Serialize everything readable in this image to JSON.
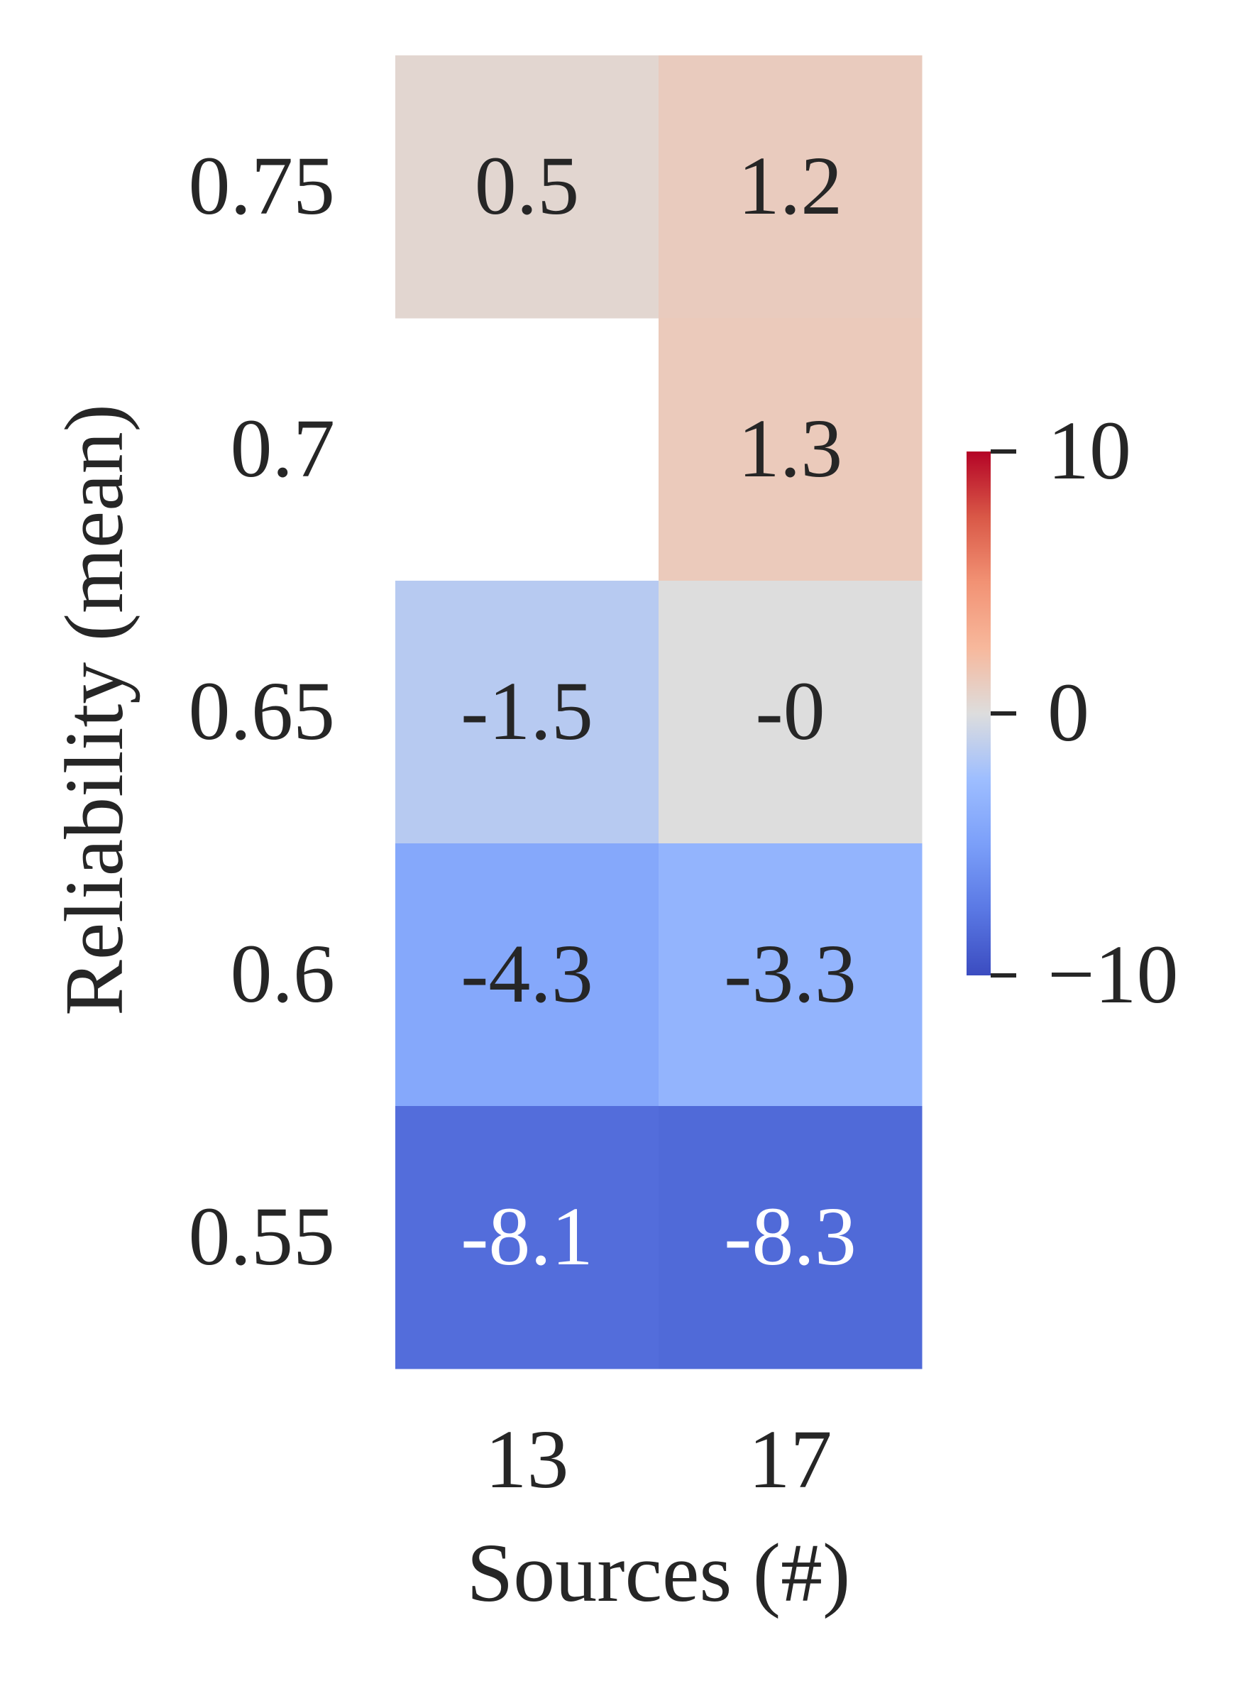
{
  "chart_data": {
    "type": "heatmap",
    "xlabel": "Sources (#)",
    "ylabel": "Reliability (mean)",
    "x_categories": [
      "13",
      "17"
    ],
    "y_categories": [
      "0.75",
      "0.7",
      "0.65",
      "0.6",
      "0.55"
    ],
    "cells": [
      {
        "x": "13",
        "y": "0.75",
        "value": 0.5,
        "label": "0.5"
      },
      {
        "x": "17",
        "y": "0.75",
        "value": 1.2,
        "label": "1.2"
      },
      {
        "x": "13",
        "y": "0.7",
        "value": null,
        "label": ""
      },
      {
        "x": "17",
        "y": "0.7",
        "value": 1.3,
        "label": "1.3"
      },
      {
        "x": "13",
        "y": "0.65",
        "value": -1.5,
        "label": "-1.5"
      },
      {
        "x": "17",
        "y": "0.65",
        "value": -0.0,
        "label": "-0"
      },
      {
        "x": "13",
        "y": "0.6",
        "value": -4.3,
        "label": "-4.3"
      },
      {
        "x": "17",
        "y": "0.6",
        "value": -3.3,
        "label": "-3.3"
      },
      {
        "x": "13",
        "y": "0.55",
        "value": -8.1,
        "label": "-8.1"
      },
      {
        "x": "17",
        "y": "0.55",
        "value": -8.3,
        "label": "-8.3"
      }
    ],
    "colorbar": {
      "colormap": "coolwarm",
      "range": [
        -10,
        10
      ],
      "ticks": [
        10,
        0,
        -10
      ],
      "tick_labels": [
        "10",
        "0",
        "−10"
      ],
      "low_color": "#3b4cc0",
      "mid_color": "#dddddd",
      "high_color": "#b40426"
    }
  }
}
